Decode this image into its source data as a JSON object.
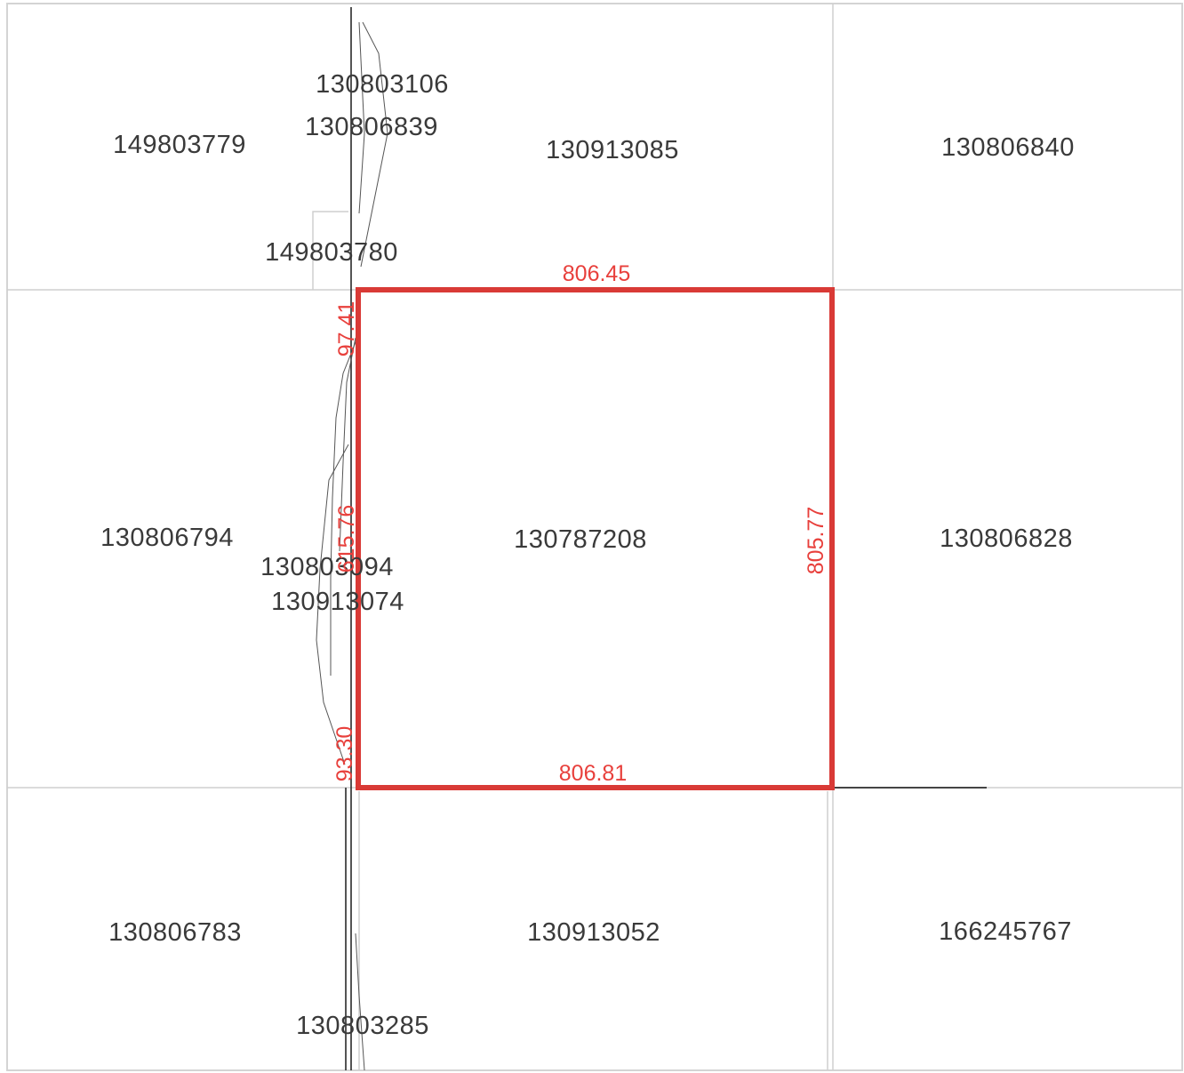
{
  "parcels": {
    "p149803779": "149803779",
    "p130803106": "130803106",
    "p130806839": "130806839",
    "p130913085": "130913085",
    "p130806840": "130806840",
    "p149803780": "149803780",
    "p130806794": "130806794",
    "p130787208": "130787208",
    "p130806828": "130806828",
    "p130803094": "130803094",
    "p130913074": "130913074",
    "p130806783": "130806783",
    "p130913052": "130913052",
    "p166245767": "166245767",
    "p130803285": "130803285"
  },
  "dimensions": {
    "top": "806.45",
    "bottom": "806.81",
    "right": "805.77",
    "left_upper": "97.41",
    "left_middle": "615.76",
    "left_lower": "93.30"
  },
  "colors": {
    "selected_parcel_outline": "#d93a36",
    "dimension_text": "#e8403c",
    "parcel_text": "#3a3a3a",
    "grid_line": "#cfcfcf",
    "road_line": "#2a2a2a"
  }
}
